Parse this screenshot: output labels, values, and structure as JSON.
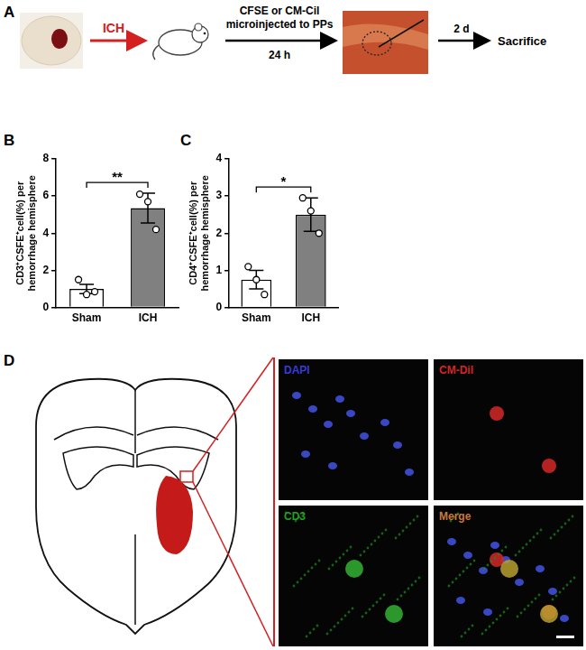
{
  "figure": {
    "panel_labels": [
      "A",
      "B",
      "C",
      "D"
    ],
    "panel_a": {
      "arrow1_label": "ICH",
      "arrow2_label_above": [
        "CFSE or CM-Cil",
        "microinjected to PPs"
      ],
      "arrow2_label_below": "24 h",
      "arrow3_label": "2 d",
      "end_label": "Sacrifice"
    },
    "panel_d": {
      "channels": [
        {
          "label": "DAPI",
          "color": "#3a3ad8"
        },
        {
          "label": "CM-Dil",
          "color": "#d42424"
        },
        {
          "label": "CD3",
          "color": "#22a022"
        },
        {
          "label": "Merge",
          "color": "#c8783a"
        }
      ]
    }
  },
  "chart_data": [
    {
      "type": "bar",
      "categories": [
        "Sham",
        "ICH"
      ],
      "values": [
        1.0,
        5.35
      ],
      "error": [
        0.25,
        0.8
      ],
      "points": [
        [
          1.5,
          0.7,
          0.85
        ],
        [
          6.1,
          5.7,
          4.2
        ]
      ],
      "colors": [
        "#ffffff",
        "#808080"
      ],
      "y_label": [
        "CD3⁺CSFE⁺cell(%) per",
        "hemorrhage hemisphere"
      ],
      "ylim": [
        0,
        8
      ],
      "yticks": [
        0,
        2,
        4,
        6,
        8
      ],
      "annotations": [
        {
          "text": "**",
          "between": [
            "Sham",
            "ICH"
          ]
        }
      ]
    },
    {
      "type": "bar",
      "categories": [
        "Sham",
        "ICH"
      ],
      "values": [
        0.75,
        2.5
      ],
      "error": [
        0.25,
        0.45
      ],
      "points": [
        [
          1.1,
          0.75,
          0.35
        ],
        [
          2.95,
          2.6,
          2.0
        ]
      ],
      "colors": [
        "#ffffff",
        "#808080"
      ],
      "y_label": [
        "CD4⁺CSFE⁺cell(%) per",
        "hemorrhage hemisphere"
      ],
      "ylim": [
        0,
        4
      ],
      "yticks": [
        0,
        1,
        2,
        3,
        4
      ],
      "annotations": [
        {
          "text": "*",
          "between": [
            "Sham",
            "ICH"
          ]
        }
      ]
    }
  ]
}
